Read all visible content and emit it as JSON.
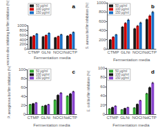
{
  "chart_data": [
    {
      "type": "bar",
      "title": "a",
      "categories": [
        "CTMP",
        "GLNi",
        "NOCI",
        "NdCTP"
      ],
      "series": [
        {
          "name": "50 μg/ml",
          "color": "#1a1a1a",
          "values": [
            520,
            530,
            490,
            560
          ],
          "errors": [
            10.4,
            10.6,
            9.8,
            11.2
          ]
        },
        {
          "name": "100 μg/ml",
          "color": "#cc0000",
          "values": [
            570,
            590,
            545,
            620
          ],
          "errors": [
            11.4,
            11.8,
            10.9,
            12.4
          ]
        },
        {
          "name": "150 μg/ml",
          "color": "#1a6fc4",
          "values": [
            650,
            680,
            620,
            720
          ],
          "errors": [
            13,
            13.6,
            12.4,
            14.4
          ]
        }
      ],
      "xlabel": "Fermentation media",
      "ylabel": "S. flavescens disc inhibiting biofilm inhibition (%)",
      "ylim": [
        0,
        1000
      ],
      "yticks": [
        0,
        200,
        400,
        600,
        800,
        1000
      ],
      "grid": false,
      "legend": "upper left"
    },
    {
      "type": "bar",
      "title": "b",
      "categories": [
        "CTMP",
        "GLNi",
        "NOCI",
        "NdCTP"
      ],
      "series": [
        {
          "name": "50 μg/ml",
          "color": "#1a1a1a",
          "values": [
            200,
            480,
            440,
            640
          ],
          "errors": [
            4,
            9.6,
            8.8,
            12.8
          ]
        },
        {
          "name": "100 μg/ml",
          "color": "#cc0000",
          "values": [
            260,
            560,
            500,
            720
          ],
          "errors": [
            5.2,
            11.2,
            10,
            14.4
          ]
        },
        {
          "name": "150 μg/ml",
          "color": "#1a6fc4",
          "values": [
            310,
            630,
            570,
            800
          ],
          "errors": [
            6.2,
            12.6,
            11.4,
            16
          ]
        }
      ],
      "xlabel": "Fermentation media",
      "ylabel": "S. aureus biofilm inhibition (%)",
      "ylim": [
        0,
        1000
      ],
      "yticks": [
        0,
        200,
        400,
        600,
        800,
        1000
      ],
      "grid": false,
      "legend": "upper left"
    },
    {
      "type": "bar",
      "title": "c",
      "categories": [
        "CTMP",
        "GLNi",
        "NOCI",
        "NdCTP"
      ],
      "series": [
        {
          "name": "50 μg/ml",
          "color": "#33aa33",
          "values": [
            22,
            18,
            32,
            41
          ],
          "errors": [
            0.44,
            0.36,
            0.64,
            0.82
          ]
        },
        {
          "name": "100 μg/ml",
          "color": "#1a1a1a",
          "values": [
            24,
            20,
            43,
            46
          ],
          "errors": [
            0.48,
            0.4,
            0.86,
            0.92
          ]
        },
        {
          "name": "150 μg/ml",
          "color": "#8844cc",
          "values": [
            26,
            22,
            48,
            51
          ],
          "errors": [
            0.52,
            0.44,
            0.96,
            1.02
          ]
        }
      ],
      "xlabel": "Fermentation media",
      "ylabel": "P. aeruginosa biofilm inhibition (%)",
      "ylim": [
        0,
        100
      ],
      "yticks": [
        0,
        20,
        40,
        60,
        80,
        100
      ],
      "grid": false,
      "legend": "upper left"
    },
    {
      "type": "bar",
      "title": "d",
      "categories": [
        "CTMP",
        "GLNi",
        "NOCI",
        "NdCTP"
      ],
      "series": [
        {
          "name": "50 μg/ml",
          "color": "#33aa33",
          "values": [
            12,
            10,
            14,
            45
          ],
          "errors": [
            0.24,
            0.2,
            0.28,
            0.9
          ]
        },
        {
          "name": "100 μg/ml",
          "color": "#1a1a1a",
          "values": [
            15,
            13,
            22,
            58
          ],
          "errors": [
            0.3,
            0.26,
            0.44,
            1.16
          ]
        },
        {
          "name": "150 μg/ml",
          "color": "#8844cc",
          "values": [
            18,
            15,
            30,
            68
          ],
          "errors": [
            0.36,
            0.3,
            0.6,
            1.36
          ]
        }
      ],
      "xlabel": "Fermentation media",
      "ylabel": "E. coli biofilm inhibition (%)",
      "ylim": [
        0,
        100
      ],
      "yticks": [
        0,
        20,
        40,
        60,
        80,
        100
      ],
      "grid": false,
      "legend": "upper left"
    }
  ]
}
